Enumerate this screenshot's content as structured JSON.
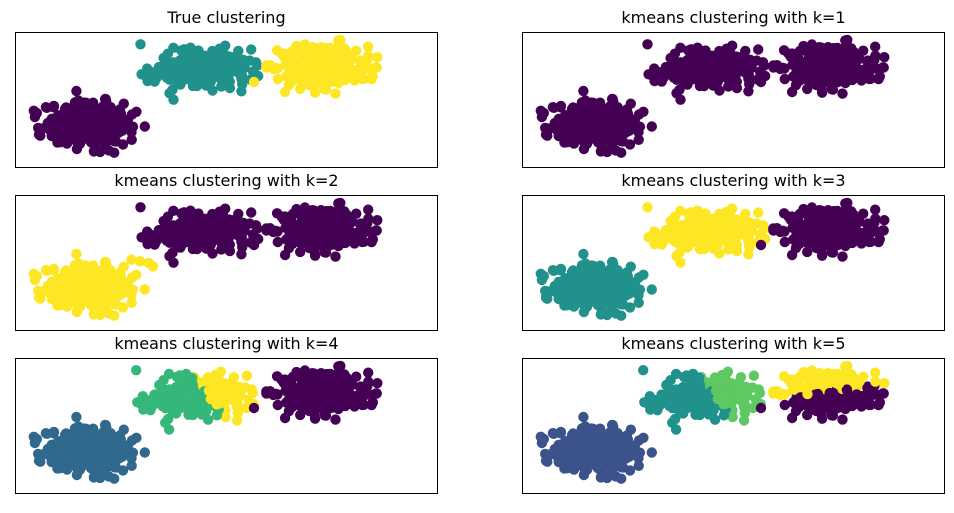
{
  "figure": {
    "palette": {
      "viridis_0": "#440154",
      "viridis_1": "#3b528b",
      "viridis_2": "#21918c",
      "viridis_3": "#31688e",
      "viridis_4": "#35b779",
      "viridis_5": "#5ec962",
      "viridis_6": "#fde725",
      "frame": "#000000",
      "background": "#ffffff"
    }
  },
  "chart_data": [
    {
      "type": "scatter",
      "title": "True clustering",
      "grid": false,
      "legend": "none",
      "xlim": [
        -1.6,
        8.2
      ],
      "ylim": [
        -1.8,
        2.2
      ],
      "blobs": [
        {
          "center": [
            0.1,
            -0.5
          ],
          "spread": [
            0.5,
            0.32
          ],
          "count": 320,
          "color": "#440154"
        },
        {
          "center": [
            2.7,
            1.1
          ],
          "spread": [
            0.5,
            0.28
          ],
          "count": 320,
          "color": "#21918c"
        },
        {
          "center": [
            5.5,
            1.2
          ],
          "spread": [
            0.52,
            0.3
          ],
          "count": 320,
          "color": "#fde725"
        }
      ]
    },
    {
      "type": "scatter",
      "title": "kmeans clustering with k=1",
      "grid": false,
      "legend": "none",
      "xlim": [
        -1.6,
        8.2
      ],
      "ylim": [
        -1.8,
        2.2
      ],
      "blobs": [
        {
          "center": [
            0.1,
            -0.5
          ],
          "spread": [
            0.5,
            0.32
          ],
          "count": 320,
          "color": "#440154"
        },
        {
          "center": [
            2.7,
            1.1
          ],
          "spread": [
            0.5,
            0.28
          ],
          "count": 320,
          "color": "#440154"
        },
        {
          "center": [
            5.5,
            1.2
          ],
          "spread": [
            0.52,
            0.3
          ],
          "count": 320,
          "color": "#440154"
        }
      ]
    },
    {
      "type": "scatter",
      "title": "kmeans clustering with k=2",
      "grid": false,
      "legend": "none",
      "xlim": [
        -1.6,
        8.2
      ],
      "ylim": [
        -1.8,
        2.2
      ],
      "blobs": [
        {
          "center": [
            0.1,
            -0.5
          ],
          "spread": [
            0.5,
            0.32
          ],
          "count": 320,
          "color": "#fde725"
        },
        {
          "center": [
            2.7,
            1.1
          ],
          "spread": [
            0.5,
            0.28
          ],
          "count": 320,
          "color": "#440154"
        },
        {
          "center": [
            5.5,
            1.2
          ],
          "spread": [
            0.52,
            0.3
          ],
          "count": 320,
          "color": "#440154"
        }
      ],
      "extra_points": [
        {
          "x": 1.3,
          "y": 0.25,
          "color": "#fde725"
        },
        {
          "x": 1.5,
          "y": 0.2,
          "color": "#fde725"
        },
        {
          "x": 1.1,
          "y": 0.3,
          "color": "#fde725"
        },
        {
          "x": 1.6,
          "y": 0.1,
          "color": "#fde725"
        }
      ]
    },
    {
      "type": "scatter",
      "title": "kmeans clustering with k=3",
      "grid": false,
      "legend": "none",
      "xlim": [
        -1.6,
        8.2
      ],
      "ylim": [
        -1.8,
        2.2
      ],
      "blobs": [
        {
          "center": [
            0.1,
            -0.5
          ],
          "spread": [
            0.5,
            0.32
          ],
          "count": 320,
          "color": "#21918c"
        },
        {
          "center": [
            2.7,
            1.1
          ],
          "spread": [
            0.5,
            0.28
          ],
          "count": 320,
          "color": "#fde725"
        },
        {
          "center": [
            5.5,
            1.2
          ],
          "spread": [
            0.52,
            0.3
          ],
          "count": 320,
          "color": "#440154"
        }
      ]
    },
    {
      "type": "scatter",
      "title": "kmeans clustering with k=4",
      "grid": false,
      "legend": "none",
      "xlim": [
        -1.6,
        8.2
      ],
      "ylim": [
        -1.8,
        2.2
      ],
      "split_x": 2.9,
      "blobs": [
        {
          "center": [
            0.1,
            -0.5
          ],
          "spread": [
            0.5,
            0.32
          ],
          "count": 320,
          "color": "#31688e"
        },
        {
          "center": [
            2.6,
            1.05
          ],
          "spread": [
            0.5,
            0.3
          ],
          "count": 320,
          "color": "#35b779",
          "right_color": "#fde725"
        },
        {
          "center": [
            5.5,
            1.2
          ],
          "spread": [
            0.52,
            0.3
          ],
          "count": 320,
          "color": "#440154"
        }
      ]
    },
    {
      "type": "scatter",
      "title": "kmeans clustering with k=5",
      "grid": false,
      "legend": "none",
      "xlim": [
        -1.6,
        8.2
      ],
      "ylim": [
        -1.8,
        2.2
      ],
      "split_x": 2.9,
      "split_y": 1.2,
      "blobs": [
        {
          "center": [
            0.1,
            -0.5
          ],
          "spread": [
            0.5,
            0.32
          ],
          "count": 320,
          "color": "#3b528b"
        },
        {
          "center": [
            2.6,
            1.05
          ],
          "spread": [
            0.5,
            0.3
          ],
          "count": 320,
          "color": "#21918c",
          "right_color": "#5ec962"
        },
        {
          "center": [
            5.5,
            1.2
          ],
          "spread": [
            0.52,
            0.3
          ],
          "count": 320,
          "color": "#440154",
          "top_color": "#fde725"
        }
      ]
    }
  ]
}
